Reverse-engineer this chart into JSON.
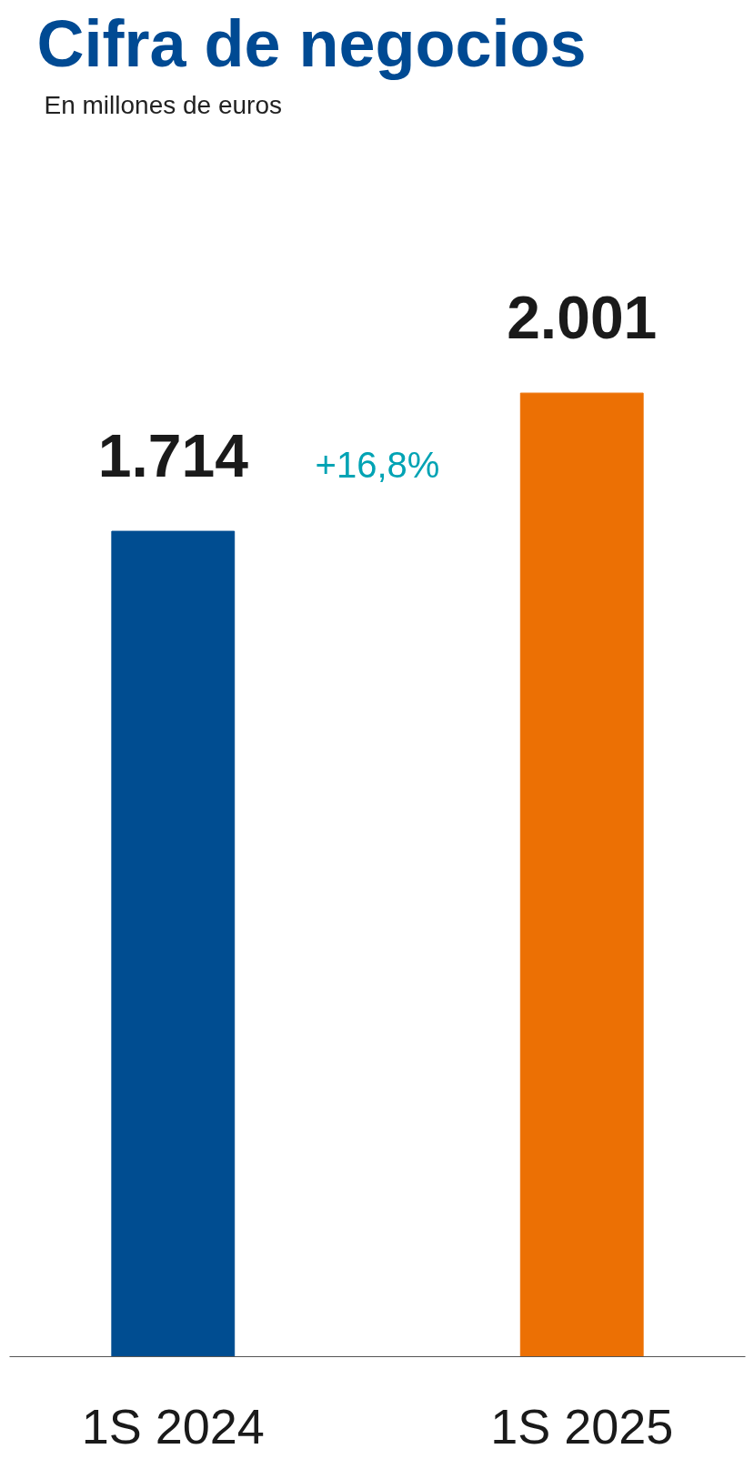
{
  "chart_data": {
    "type": "bar",
    "title": "Cifra de negocios",
    "subtitle": "En millones de euros",
    "categories": [
      "1S 2024",
      "1S 2025"
    ],
    "values": [
      1714,
      2001
    ],
    "colors": [
      "#004d91",
      "#ec7004"
    ],
    "value_labels": [
      "1.714",
      "2.001"
    ],
    "annotations": [
      "+16,8%"
    ],
    "grid": false
  }
}
